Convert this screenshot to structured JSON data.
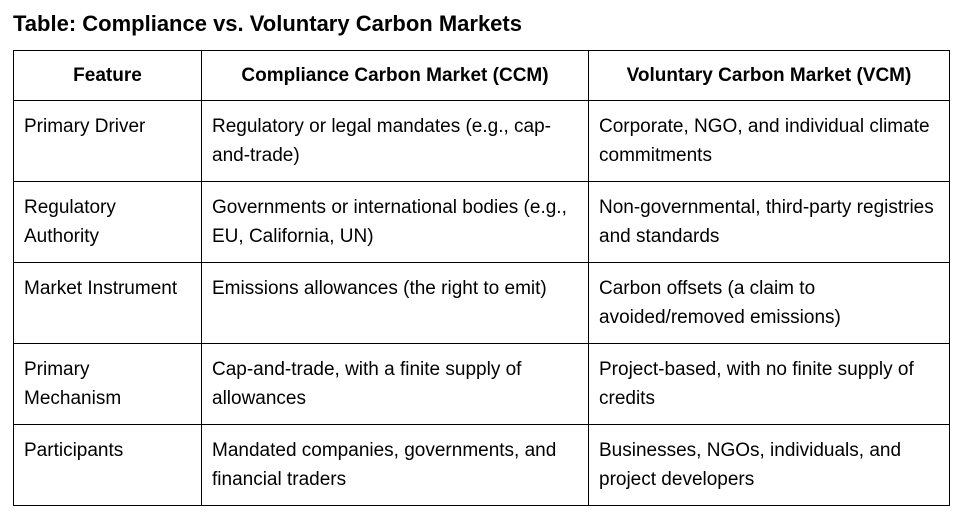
{
  "title": "Table: Compliance vs. Voluntary Carbon Markets",
  "table": {
    "headers": [
      "Feature",
      "Compliance Carbon Market (CCM)",
      "Voluntary Carbon Market (VCM)"
    ],
    "rows": [
      [
        "Primary Driver",
        "Regulatory or legal mandates (e.g., cap-and-trade)",
        "Corporate, NGO, and individual climate commitments"
      ],
      [
        "Regulatory Authority",
        "Governments or international bodies (e.g., EU, California, UN)",
        "Non-governmental, third-party registries and standards"
      ],
      [
        "Market Instrument",
        "Emissions allowances (the right to emit)",
        "Carbon offsets (a claim to avoided/removed emissions)"
      ],
      [
        "Primary Mechanism",
        "Cap-and-trade, with a finite supply of allowances",
        "Project-based, with no finite supply of credits"
      ],
      [
        "Participants",
        "Mandated companies, governments, and financial traders",
        "Businesses, NGOs, individuals, and project developers"
      ]
    ]
  }
}
